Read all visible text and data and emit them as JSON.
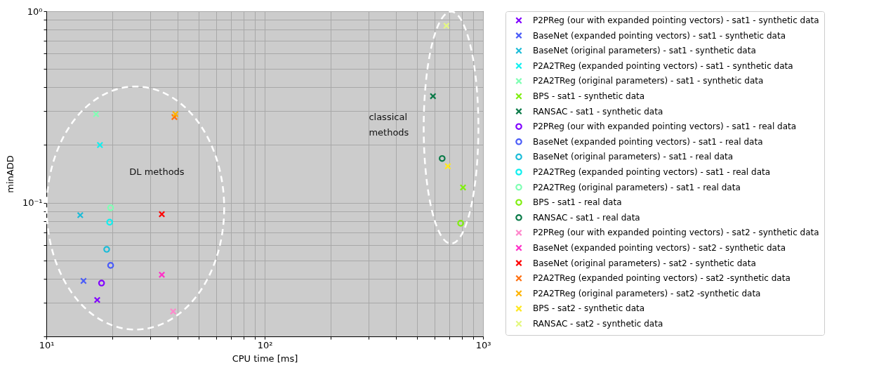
{
  "chart_data": {
    "type": "scatter",
    "xlabel": "CPU time [ms]",
    "ylabel": "minADD",
    "log": "xy",
    "grid": true,
    "legend": "right",
    "xlim": [
      10,
      1000
    ],
    "ylim": [
      0.02,
      1
    ],
    "xticks": [
      {
        "value": 10,
        "label": "10¹"
      },
      {
        "value": 20,
        "label": null
      },
      {
        "value": 30,
        "label": null
      },
      {
        "value": 40,
        "label": null
      },
      {
        "value": 50,
        "label": null
      },
      {
        "value": 60,
        "label": null
      },
      {
        "value": 70,
        "label": null
      },
      {
        "value": 80,
        "label": null
      },
      {
        "value": 90,
        "label": null
      },
      {
        "value": 100,
        "label": "10²"
      },
      {
        "value": 200,
        "label": null
      },
      {
        "value": 300,
        "label": null
      },
      {
        "value": 400,
        "label": null
      },
      {
        "value": 500,
        "label": null
      },
      {
        "value": 600,
        "label": null
      },
      {
        "value": 700,
        "label": null
      },
      {
        "value": 800,
        "label": null
      },
      {
        "value": 900,
        "label": null
      },
      {
        "value": 1000,
        "label": "10³"
      }
    ],
    "yticks": [
      {
        "value": 0.02,
        "label": null
      },
      {
        "value": 0.03,
        "label": null
      },
      {
        "value": 0.04,
        "label": null
      },
      {
        "value": 0.05,
        "label": null
      },
      {
        "value": 0.06,
        "label": null
      },
      {
        "value": 0.07,
        "label": null
      },
      {
        "value": 0.08,
        "label": null
      },
      {
        "value": 0.09,
        "label": null
      },
      {
        "value": 0.1,
        "label": "10⁻¹"
      },
      {
        "value": 0.2,
        "label": null
      },
      {
        "value": 0.3,
        "label": null
      },
      {
        "value": 0.4,
        "label": null
      },
      {
        "value": 0.5,
        "label": null
      },
      {
        "value": 0.6,
        "label": null
      },
      {
        "value": 0.7,
        "label": null
      },
      {
        "value": 0.8,
        "label": null
      },
      {
        "value": 0.9,
        "label": null
      },
      {
        "value": 1,
        "label": "10⁰"
      }
    ],
    "annotations": [
      "DL methods",
      "classical\nmethods"
    ],
    "series": [
      {
        "name": "P2PReg (our with expanded pointing vectors) - sat1 - synthetic data",
        "color": "#8000ff",
        "marker": "cross",
        "x": [
          17.1
        ],
        "values": [
          0.031
        ]
      },
      {
        "name": "BaseNet (expanded pointing vectors) - sat1 - synthetic data",
        "color": "#4a5cf8",
        "marker": "cross",
        "x": [
          14.8
        ],
        "values": [
          0.039
        ]
      },
      {
        "name": "BaseNet (original parameters) - sat1 - synthetic data",
        "color": "#1cbcd8",
        "marker": "cross",
        "x": [
          14.3
        ],
        "values": [
          0.086
        ]
      },
      {
        "name": "P2A2TReg (expanded pointing vectors) - sat1 - synthetic data",
        "color": "#10f0f0",
        "marker": "cross",
        "x": [
          17.6
        ],
        "values": [
          0.2
        ]
      },
      {
        "name": "P2A2TReg (original parameters) - sat1 - synthetic data",
        "color": "#80ffb4",
        "marker": "cross",
        "x": [
          16.9
        ],
        "values": [
          0.29
        ]
      },
      {
        "name": "BPS - sat1 - synthetic data",
        "color": "#80ee10",
        "marker": "cross",
        "x": [
          810
        ],
        "values": [
          0.12
        ]
      },
      {
        "name": "RANSAC - sat1 - synthetic data",
        "color": "#0a7a48",
        "marker": "cross",
        "x": [
          590
        ],
        "values": [
          0.36
        ]
      },
      {
        "name": "P2PReg (our with expanded pointing vectors) - sat1 - real data",
        "color": "#8000ff",
        "marker": "circle",
        "x": [
          17.9
        ],
        "values": [
          0.038
        ]
      },
      {
        "name": "BaseNet (expanded pointing vectors) - sat1 - real data",
        "color": "#4a5cf8",
        "marker": "circle",
        "x": [
          19.7
        ],
        "values": [
          0.047
        ]
      },
      {
        "name": "BaseNet (original parameters) - sat1 - real data",
        "color": "#1cbcd8",
        "marker": "circle",
        "x": [
          18.9
        ],
        "values": [
          0.057
        ]
      },
      {
        "name": "P2A2TReg (expanded pointing vectors) - sat1 - real data",
        "color": "#10f0f0",
        "marker": "circle",
        "x": [
          19.5
        ],
        "values": [
          0.079
        ]
      },
      {
        "name": "P2A2TReg (original parameters) - sat1 - real data",
        "color": "#80ffb4",
        "marker": "circle",
        "x": [
          19.7
        ],
        "values": [
          0.094
        ]
      },
      {
        "name": "BPS - sat1 - real data",
        "color": "#80ee10",
        "marker": "circle",
        "x": [
          790
        ],
        "values": [
          0.078
        ]
      },
      {
        "name": "RANSAC - sat1 - real data",
        "color": "#0a7a48",
        "marker": "circle",
        "x": [
          650
        ],
        "values": [
          0.17
        ]
      },
      {
        "name": "P2PReg (our with expanded pointing vectors) - sat2 - synthetic data",
        "color": "#ff88cc",
        "marker": "cross",
        "x": [
          38.1
        ],
        "values": [
          0.027
        ]
      },
      {
        "name": "BaseNet (expanded pointing vectors) - sat2 - synthetic data",
        "color": "#ff30c8",
        "marker": "cross",
        "x": [
          33.8
        ],
        "values": [
          0.042
        ]
      },
      {
        "name": "BaseNet (original parameters) - sat2 - synthetic data",
        "color": "#ff0000",
        "marker": "cross",
        "x": [
          33.8
        ],
        "values": [
          0.087
        ]
      },
      {
        "name": "P2A2TReg (expanded pointing vectors) - sat2 -synthetic data",
        "color": "#ff7010",
        "marker": "cross",
        "x": [
          38.6
        ],
        "values": [
          0.28
        ]
      },
      {
        "name": "P2A2TReg (original parameters) - sat2 -synthetic data",
        "color": "#ffb400",
        "marker": "cross",
        "x": [
          39
        ],
        "values": [
          0.29
        ]
      },
      {
        "name": "BPS - sat2 - synthetic data",
        "color": "#ffe820",
        "marker": "cross",
        "x": [
          690
        ],
        "values": [
          0.155
        ]
      },
      {
        "name": "RANSAC - sat2 - synthetic data",
        "color": "#e4f880",
        "marker": "cross",
        "x": [
          680
        ],
        "values": [
          0.84
        ]
      }
    ]
  }
}
